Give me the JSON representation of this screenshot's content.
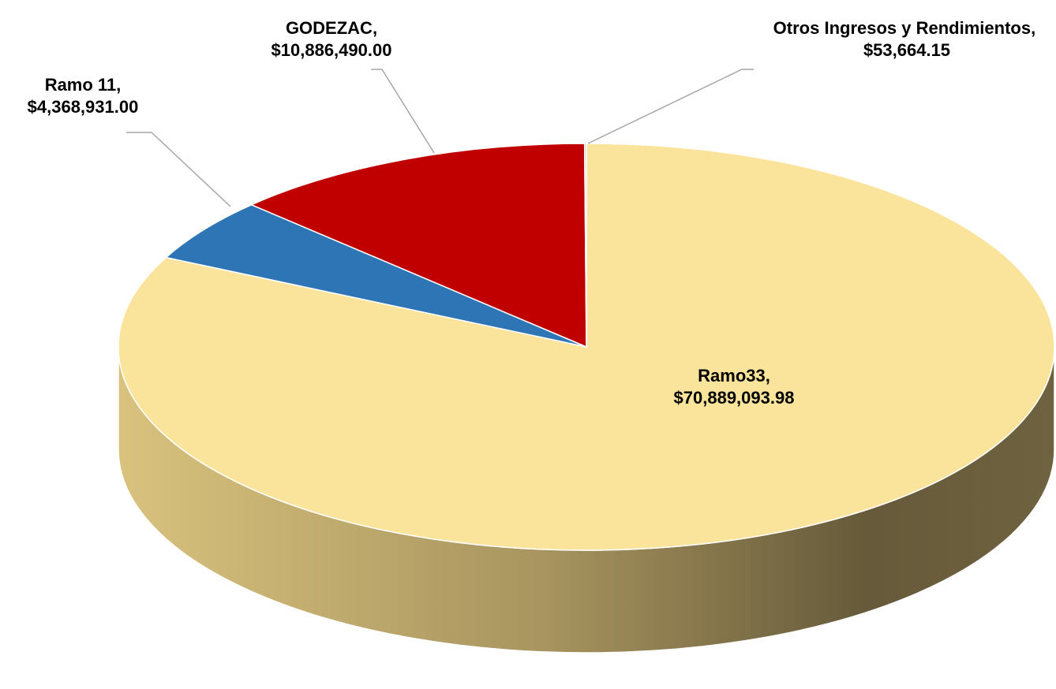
{
  "chart_data": {
    "type": "pie",
    "categories": [
      "Ramo33,",
      "Ramo 11,",
      "GODEZAC,",
      "Otros Ingresos y Rendimientos,"
    ],
    "values": [
      70889093.98,
      4368931.0,
      10886490.0,
      53664.15
    ],
    "value_labels": [
      "$70,889,093.98",
      "$4,368,931.00",
      "$10,886,490.00",
      "$53,664.15"
    ],
    "colors": [
      "#fae39b",
      "#2e75b6",
      "#c00000",
      "#bfbfbf"
    ]
  }
}
